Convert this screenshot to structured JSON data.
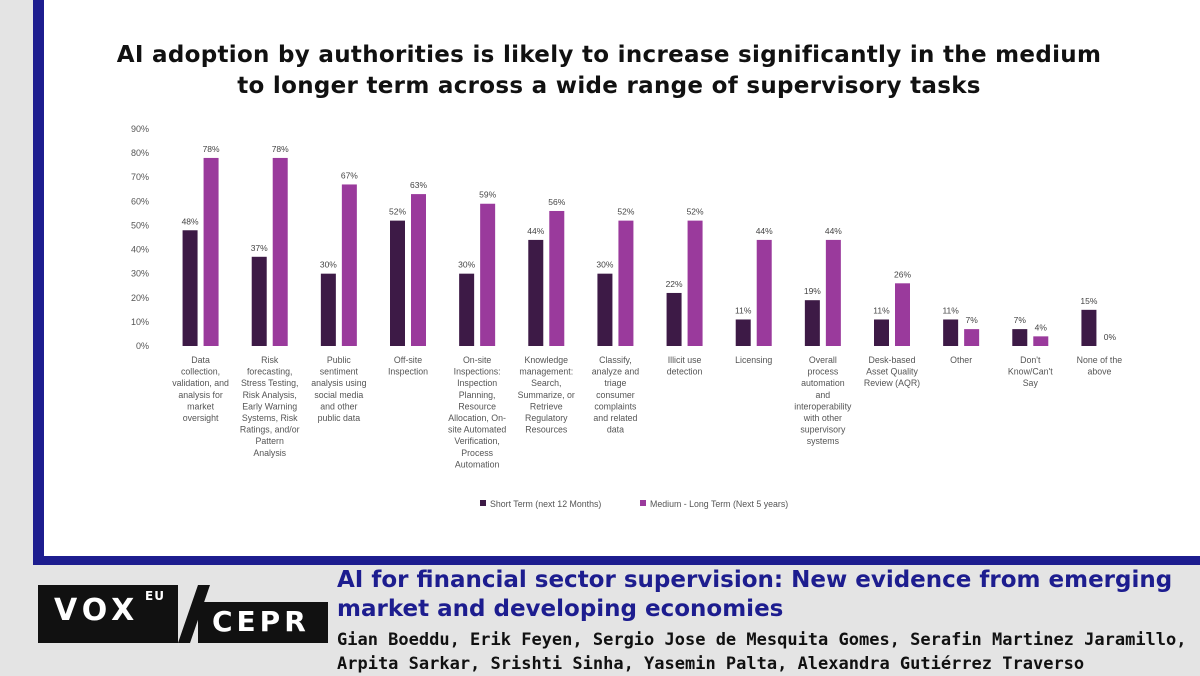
{
  "chart_data": {
    "type": "bar",
    "title": "AI adoption by authorities is likely to increase significantly in the medium to longer term across a wide range of supervisory tasks",
    "xlabel": "",
    "ylabel": "",
    "ylim": [
      0,
      90
    ],
    "yticks": [
      "0%",
      "10%",
      "20%",
      "30%",
      "40%",
      "50%",
      "60%",
      "70%",
      "80%",
      "90%"
    ],
    "legend_position": "bottom",
    "categories": [
      [
        "Data",
        "collection,",
        "validation, and",
        "analysis for",
        "market",
        "oversight"
      ],
      [
        "Risk",
        "forecasting,",
        "Stress Testing,",
        "Risk Analysis,",
        "Early Warning",
        "Systems, Risk",
        "Ratings, and/or",
        "Pattern",
        "Analysis"
      ],
      [
        "Public",
        "sentiment",
        "analysis using",
        "social media",
        "and other",
        "public data"
      ],
      [
        "Off-site",
        "Inspection"
      ],
      [
        "On-site",
        "Inspections:",
        "Inspection",
        "Planning,",
        "Resource",
        "Allocation, On-",
        "site Automated",
        "Verification,",
        "Process",
        "Automation"
      ],
      [
        "Knowledge",
        "management:",
        "Search,",
        "Summarize, or",
        "Retrieve",
        "Regulatory",
        "Resources"
      ],
      [
        "Classify,",
        "analyze and",
        "triage",
        "consumer",
        "complaints",
        "and related",
        "data"
      ],
      [
        "Illicit use",
        "detection"
      ],
      [
        "Licensing"
      ],
      [
        "Overall",
        "process",
        "automation",
        "and",
        "interoperability",
        "with other",
        "supervisory",
        "systems"
      ],
      [
        "Desk-based",
        "Asset Quality",
        "Review (AQR)"
      ],
      [
        "Other"
      ],
      [
        "Don't",
        "Know/Can't",
        "Say"
      ],
      [
        "None of the",
        "above"
      ]
    ],
    "series": [
      {
        "name": "Short Term (next 12 Months)",
        "color": "#3d1a46",
        "values": [
          48,
          37,
          30,
          52,
          30,
          44,
          30,
          22,
          11,
          19,
          11,
          11,
          7,
          15
        ],
        "labels": [
          "48%",
          "37%",
          "30%",
          "52%",
          "30%",
          "44%",
          "30%",
          "22%",
          "11%",
          "19%",
          "11%",
          "11%",
          "7%",
          "15%"
        ]
      },
      {
        "name": "Medium - Long Term (Next 5 years)",
        "color": "#9a3a9c",
        "values": [
          78,
          78,
          67,
          63,
          59,
          56,
          52,
          52,
          44,
          44,
          26,
          7,
          4,
          0
        ],
        "labels": [
          "78%",
          "78%",
          "67%",
          "63%",
          "59%",
          "56%",
          "52%",
          "52%",
          "44%",
          "44%",
          "26%",
          "7%",
          "4%",
          "0%"
        ]
      }
    ]
  },
  "footer": {
    "logo_vox": "VOX",
    "logo_eu": "EU",
    "logo_cepr": "CEPR",
    "article_title": "AI for financial sector supervision: New evidence from emerging market and developing economies",
    "authors": "Gian Boeddu, Erik Feyen, Sergio Jose de Mesquita Gomes, Serafin Martinez Jaramillo, Arpita Sarkar, Srishti Sinha, Yasemin Palta, Alexandra Gutiérrez Traverso"
  },
  "colors": {
    "frame": "#1d1d8f",
    "background": "#e4e4e4"
  }
}
